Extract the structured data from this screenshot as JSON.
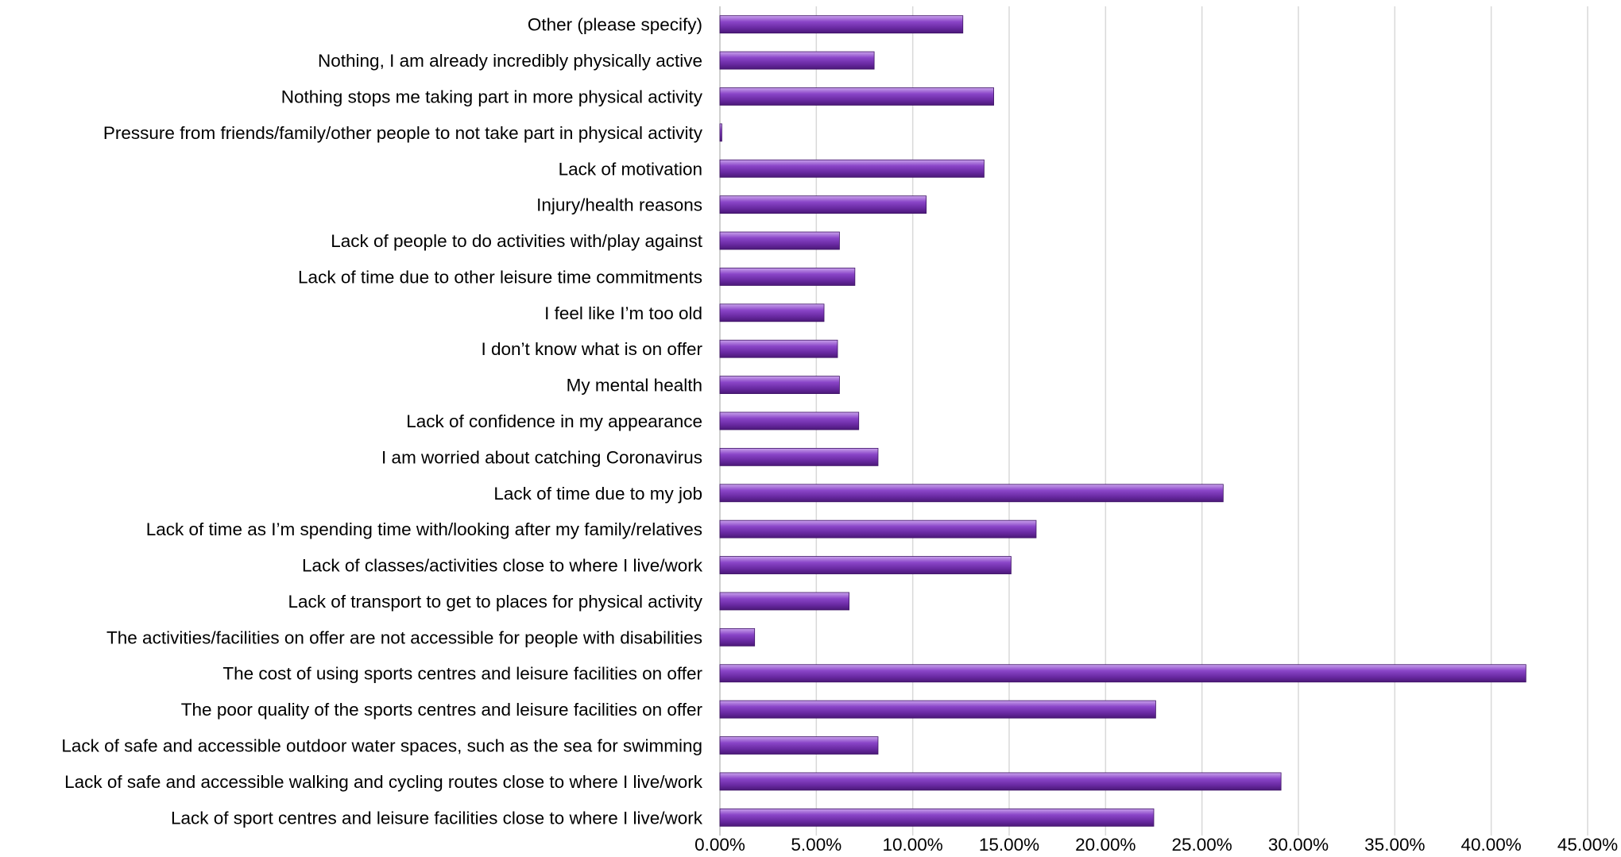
{
  "chart_data": {
    "type": "bar",
    "orientation": "horizontal",
    "title": "",
    "xlabel": "",
    "ylabel": "",
    "xlim": [
      0,
      45
    ],
    "grid": true,
    "legend": "none",
    "bar_color": "#7030a0",
    "x_ticks": [
      "0.00%",
      "5.00%",
      "10.00%",
      "15.00%",
      "20.00%",
      "25.00%",
      "30.00%",
      "35.00%",
      "40.00%",
      "45.00%"
    ],
    "categories": [
      "Other (please specify)",
      "Nothing, I am already incredibly physically active",
      "Nothing stops me taking part in more physical activity",
      "Pressure from friends/family/other people to not take part in physical activity",
      "Lack of motivation",
      "Injury/health reasons",
      "Lack of people to do activities with/play against",
      "Lack of time due to other leisure time commitments",
      "I feel like I’m too old",
      "I don’t know what is on offer",
      "My mental health",
      "Lack of confidence in my appearance",
      "I am worried about catching Coronavirus",
      "Lack of time due to my job",
      "Lack of time as I’m spending time with/looking after my family/relatives",
      "Lack of classes/activities close to where I live/work",
      "Lack of transport to get to places for physical activity",
      "The activities/facilities on offer are not accessible for people with disabilities",
      "The cost of using sports centres and leisure facilities on offer",
      "The poor quality of the sports centres and leisure facilities on offer",
      "Lack of safe and accessible outdoor water spaces, such as the sea for swimming",
      "Lack of safe and accessible walking and cycling routes close to where I live/work",
      "Lack of sport centres and leisure facilities close to where I live/work"
    ],
    "values": [
      12.6,
      8.0,
      14.2,
      0.1,
      13.7,
      10.7,
      6.2,
      7.0,
      5.4,
      6.1,
      6.2,
      7.2,
      8.2,
      26.1,
      16.4,
      15.1,
      6.7,
      1.8,
      41.8,
      22.6,
      8.2,
      29.1,
      22.5
    ]
  }
}
